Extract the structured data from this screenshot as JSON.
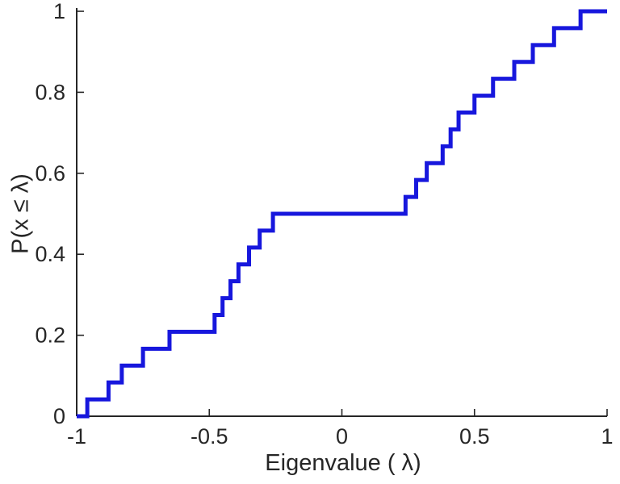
{
  "chart_data": {
    "type": "line",
    "subtype": "ecdf-stairs",
    "title": "",
    "xlabel": "Eigenvalue ( λ)",
    "ylabel": "P(x ≤ λ)",
    "xlim": [
      -1,
      1
    ],
    "ylim": [
      0,
      1
    ],
    "xticks": [
      -1,
      -0.5,
      0,
      0.5,
      1
    ],
    "xtick_labels": [
      "-1",
      "-0.5",
      "0",
      "0.5",
      "1"
    ],
    "yticks": [
      0,
      0.2,
      0.4,
      0.6,
      0.8,
      1
    ],
    "ytick_labels": [
      "0",
      "0.2",
      "0.4",
      "0.6",
      "0.8",
      "1"
    ],
    "grid": false,
    "legend": null,
    "line_color": "#1717dd",
    "line_width": 5,
    "axis_color": "#262626",
    "eigenvalues": [
      -0.96,
      -0.88,
      -0.83,
      -0.75,
      -0.65,
      -0.48,
      -0.45,
      -0.42,
      -0.39,
      -0.35,
      -0.31,
      -0.26,
      0.24,
      0.28,
      0.32,
      0.38,
      0.41,
      0.44,
      0.5,
      0.57,
      0.65,
      0.72,
      0.8,
      0.9
    ],
    "cdf_plateau": {
      "value": 0.5,
      "from": -0.26,
      "to": 0.24
    }
  }
}
